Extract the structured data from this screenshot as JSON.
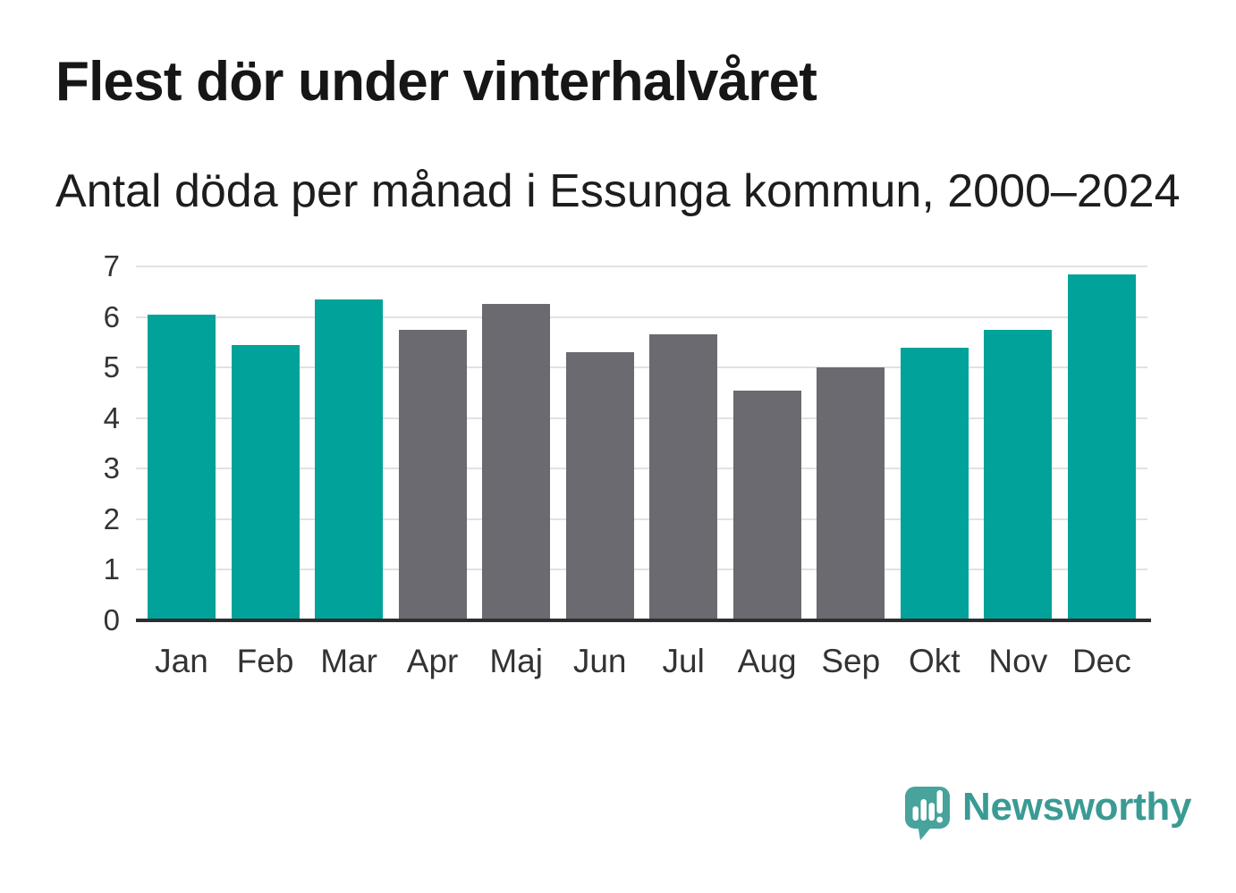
{
  "page": {
    "title": "Flest dör under vinterhalvåret",
    "subtitle": "Antal döda per månad i Essunga kommun, 2000–2024"
  },
  "chart_data": {
    "type": "bar",
    "title": "Flest dör under vinterhalvåret",
    "subtitle": "Antal döda per månad i Essunga kommun, 2000–2024",
    "categories": [
      "Jan",
      "Feb",
      "Mar",
      "Apr",
      "Maj",
      "Jun",
      "Jul",
      "Aug",
      "Sep",
      "Okt",
      "Nov",
      "Dec"
    ],
    "values": [
      6.05,
      5.45,
      6.35,
      5.75,
      6.25,
      5.3,
      5.65,
      4.55,
      5.0,
      5.4,
      5.75,
      6.85
    ],
    "highlighted": [
      true,
      true,
      true,
      false,
      false,
      false,
      false,
      false,
      false,
      true,
      true,
      true
    ],
    "xlabel": "",
    "ylabel": "",
    "ylim": [
      0,
      7
    ],
    "yticks": [
      0,
      1,
      2,
      3,
      4,
      5,
      6,
      7
    ],
    "grid": true,
    "legend_position": "none",
    "highlight_color": "#00a29a",
    "base_color": "#6a6a70"
  },
  "branding": {
    "name": "Newsworthy",
    "icon": "newsworthy-speech-bubble-bar-chart-icon",
    "icon_color": "#48a39c",
    "text_color": "#3b9a94"
  },
  "colors": {
    "background": "#ffffff",
    "title_text": "#161616",
    "axis_text": "#333333",
    "gridline": "#e2e2e2",
    "axis_line": "#2d2d32"
  }
}
